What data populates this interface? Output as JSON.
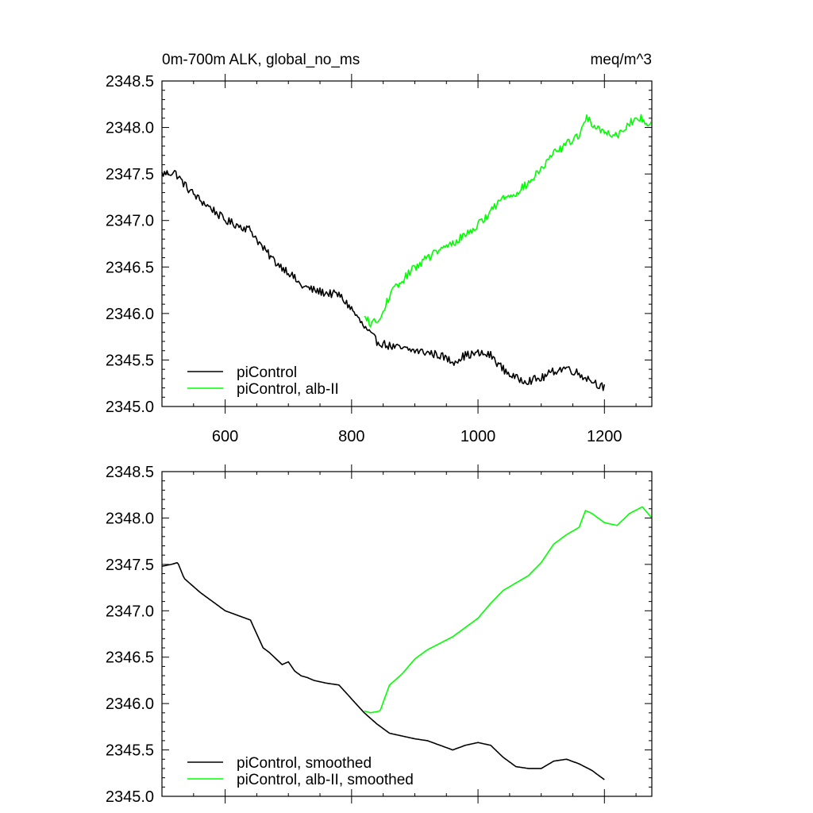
{
  "figure": {
    "title_left": "0m-700m ALK, global_no_ms",
    "title_right": "meq/m^3"
  },
  "colors": {
    "piControl": "#000000",
    "alb_II": "#00ff00",
    "axis": "#000000",
    "background": "#ffffff"
  },
  "chart_data": [
    {
      "type": "line",
      "title": "0m-700m ALK, global_no_ms",
      "units": "meq/m^3",
      "xlim": [
        500,
        1275
      ],
      "ylim": [
        2345.0,
        2348.5
      ],
      "x_ticks": [
        600,
        800,
        1000,
        1200
      ],
      "x_tick_labels": [
        "600",
        "800",
        "1000",
        "1200"
      ],
      "y_ticks": [
        2345.0,
        2345.5,
        2346.0,
        2346.5,
        2347.0,
        2347.5,
        2348.0,
        2348.5
      ],
      "y_tick_labels": [
        "2345.0",
        "2345.5",
        "2346.0",
        "2346.5",
        "2347.0",
        "2347.5",
        "2348.0",
        "2348.5"
      ],
      "legend_position": "bottom-left",
      "grid": false,
      "series": [
        {
          "name": "piControl",
          "color": "#000000",
          "noise": 0.045,
          "x": [
            500,
            520,
            540,
            560,
            580,
            600,
            620,
            640,
            660,
            680,
            700,
            720,
            740,
            760,
            780,
            800,
            820,
            840,
            860,
            880,
            900,
            920,
            940,
            960,
            980,
            1000,
            1020,
            1040,
            1060,
            1080,
            1100,
            1120,
            1140,
            1160,
            1180,
            1200
          ],
          "y": [
            2347.5,
            2347.52,
            2347.35,
            2347.22,
            2347.12,
            2347.0,
            2346.95,
            2346.9,
            2346.7,
            2346.55,
            2346.45,
            2346.3,
            2346.25,
            2346.22,
            2346.2,
            2346.05,
            2345.85,
            2345.7,
            2345.65,
            2345.62,
            2345.6,
            2345.58,
            2345.55,
            2345.48,
            2345.55,
            2345.57,
            2345.55,
            2345.4,
            2345.3,
            2345.28,
            2345.3,
            2345.38,
            2345.42,
            2345.35,
            2345.28,
            2345.2
          ]
        },
        {
          "name": "piControl, alb-II",
          "color": "#00ff00",
          "noise": 0.045,
          "x": [
            820,
            830,
            845,
            860,
            880,
            900,
            920,
            940,
            960,
            980,
            1000,
            1020,
            1040,
            1060,
            1080,
            1100,
            1120,
            1140,
            1160,
            1170,
            1180,
            1200,
            1220,
            1240,
            1260,
            1275
          ],
          "y": [
            2345.95,
            2345.9,
            2345.92,
            2346.2,
            2346.35,
            2346.5,
            2346.6,
            2346.68,
            2346.75,
            2346.85,
            2346.95,
            2347.1,
            2347.25,
            2347.3,
            2347.4,
            2347.55,
            2347.72,
            2347.82,
            2347.92,
            2348.1,
            2348.05,
            2347.95,
            2347.92,
            2348.05,
            2348.1,
            2348.02
          ]
        }
      ]
    },
    {
      "type": "line",
      "xlim": [
        500,
        1275
      ],
      "ylim": [
        2345.0,
        2348.5
      ],
      "x_ticks": [
        600,
        800,
        1000,
        1200
      ],
      "x_tick_labels": [],
      "y_ticks": [
        2345.0,
        2345.5,
        2346.0,
        2346.5,
        2347.0,
        2347.5,
        2348.0,
        2348.5
      ],
      "y_tick_labels": [
        "2345.0",
        "2345.5",
        "2346.0",
        "2346.5",
        "2347.0",
        "2347.5",
        "2348.0",
        "2348.5"
      ],
      "legend_position": "bottom-left",
      "grid": false,
      "series": [
        {
          "name": "piControl, smoothed",
          "color": "#000000",
          "noise": 0.0,
          "x": [
            500,
            515,
            525,
            535,
            560,
            580,
            600,
            620,
            640,
            650,
            660,
            670,
            690,
            700,
            710,
            720,
            730,
            740,
            760,
            780,
            800,
            820,
            840,
            860,
            880,
            900,
            920,
            940,
            960,
            980,
            1000,
            1020,
            1040,
            1060,
            1080,
            1100,
            1120,
            1140,
            1160,
            1180,
            1200
          ],
          "y": [
            2347.48,
            2347.5,
            2347.52,
            2347.35,
            2347.2,
            2347.1,
            2347.0,
            2346.95,
            2346.9,
            2346.75,
            2346.6,
            2346.55,
            2346.42,
            2346.45,
            2346.35,
            2346.3,
            2346.28,
            2346.25,
            2346.22,
            2346.2,
            2346.05,
            2345.9,
            2345.78,
            2345.68,
            2345.65,
            2345.62,
            2345.6,
            2345.55,
            2345.5,
            2345.55,
            2345.58,
            2345.55,
            2345.42,
            2345.32,
            2345.3,
            2345.3,
            2345.38,
            2345.4,
            2345.35,
            2345.28,
            2345.18
          ]
        },
        {
          "name": "piControl, alb-II, smoothed",
          "color": "#00ff00",
          "noise": 0.0,
          "x": [
            820,
            830,
            845,
            860,
            880,
            900,
            920,
            940,
            960,
            980,
            1000,
            1020,
            1040,
            1060,
            1080,
            1100,
            1120,
            1140,
            1160,
            1170,
            1180,
            1200,
            1220,
            1240,
            1260,
            1275
          ],
          "y": [
            2345.92,
            2345.9,
            2345.92,
            2346.2,
            2346.32,
            2346.48,
            2346.58,
            2346.65,
            2346.72,
            2346.82,
            2346.92,
            2347.08,
            2347.22,
            2347.3,
            2347.38,
            2347.52,
            2347.72,
            2347.82,
            2347.9,
            2348.08,
            2348.05,
            2347.95,
            2347.92,
            2348.05,
            2348.12,
            2348.0
          ]
        }
      ]
    }
  ]
}
